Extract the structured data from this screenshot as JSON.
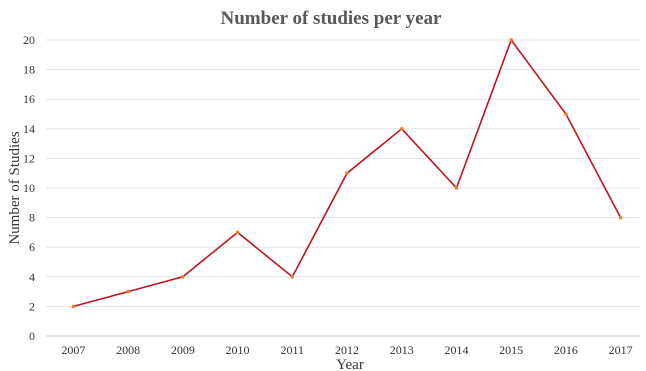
{
  "chart_data": {
    "type": "line",
    "title": "Number of studies per year",
    "xlabel": "Year",
    "ylabel": "Number of Studies",
    "categories": [
      "2007",
      "2008",
      "2009",
      "2010",
      "2011",
      "2012",
      "2013",
      "2014",
      "2015",
      "2016",
      "2017"
    ],
    "series": [
      {
        "values": [
          2,
          3,
          4,
          7,
          4,
          11,
          14,
          10,
          20,
          15,
          8
        ],
        "color": "#c0141d",
        "marker_color": "#ed7d31"
      }
    ],
    "ylim": [
      0,
      20
    ],
    "yticks": [
      "0",
      "2",
      "4",
      "6",
      "8",
      "10",
      "12",
      "14",
      "16",
      "18",
      "20"
    ],
    "grid": true,
    "legend": "none"
  }
}
